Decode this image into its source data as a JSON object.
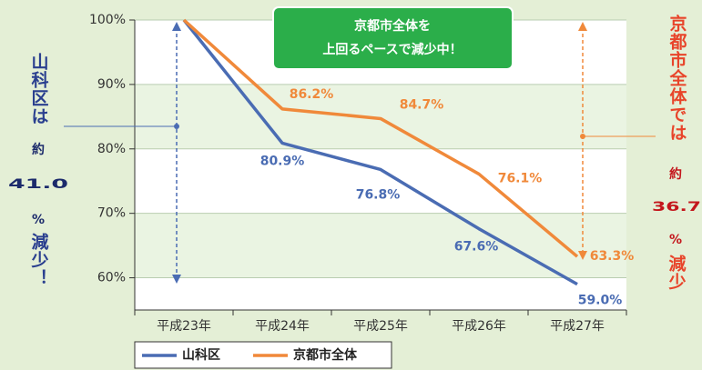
{
  "chart_data": {
    "type": "line",
    "categories": [
      "平成23年",
      "平成24年",
      "平成25年",
      "平成26年",
      "平成27年"
    ],
    "series": [
      {
        "name": "山科区",
        "color": "#4a6cb3",
        "values": [
          100,
          80.9,
          76.8,
          67.6,
          59.0
        ],
        "value_labels": [
          null,
          "80.9%",
          "76.8%",
          "67.6%",
          "59.0%"
        ]
      },
      {
        "name": "京都市全体",
        "color": "#f0893a",
        "values": [
          100,
          86.2,
          84.7,
          76.1,
          63.3
        ],
        "value_labels": [
          null,
          "86.2%",
          "84.7%",
          "76.1%",
          "63.3%"
        ]
      }
    ],
    "ylim": [
      55,
      100
    ],
    "yticks": [
      {
        "value": 60,
        "label": "60%"
      },
      {
        "value": 70,
        "label": "70%"
      },
      {
        "value": 80,
        "label": "80%"
      },
      {
        "value": 90,
        "label": "90%"
      },
      {
        "value": 100,
        "label": "100%"
      }
    ],
    "callout": [
      "京都市全体を",
      "上回るペースで減少中！"
    ],
    "left_note": {
      "lead": "山科区は",
      "about": "約",
      "figure": "41.0",
      "unit": "%",
      "tail": "減少！"
    },
    "right_note": {
      "lead": "京都市全体では",
      "about": "約",
      "figure": "36.7",
      "unit": "%",
      "tail": "減少"
    }
  }
}
